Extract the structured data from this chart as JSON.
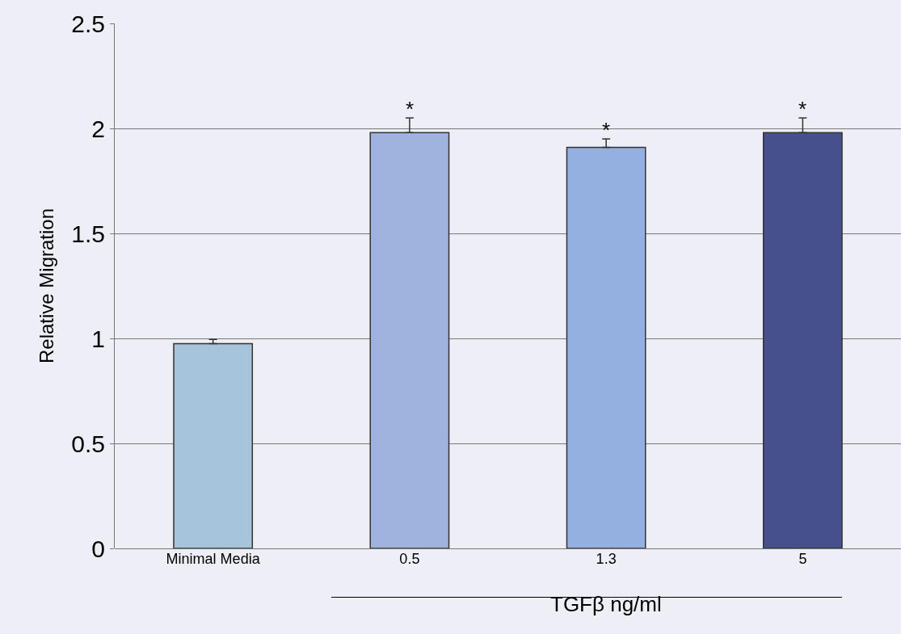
{
  "chart_data": {
    "type": "bar",
    "categories": [
      "Minimal Media",
      "0.5",
      "1.3",
      "5"
    ],
    "values": [
      0.975,
      1.98,
      1.91,
      1.98
    ],
    "errors": [
      0.02,
      0.07,
      0.04,
      0.07
    ],
    "colors": [
      "#a6c4dc",
      "#a0b2de",
      "#94b0e0",
      "#45508c"
    ],
    "ylabel": "Relative Migration",
    "xlabel": "TGFβ ng/ml",
    "ylim": [
      0,
      2.5
    ],
    "yticks": [
      0,
      0.5,
      1,
      1.5,
      2,
      2.5
    ],
    "grid": "y",
    "annotations": [
      {
        "text": "*",
        "x": "0.5",
        "y": 2.05
      },
      {
        "text": "*",
        "x": "1.3",
        "y": 1.95
      },
      {
        "text": "*",
        "x": "5",
        "y": 2.05
      }
    ]
  }
}
